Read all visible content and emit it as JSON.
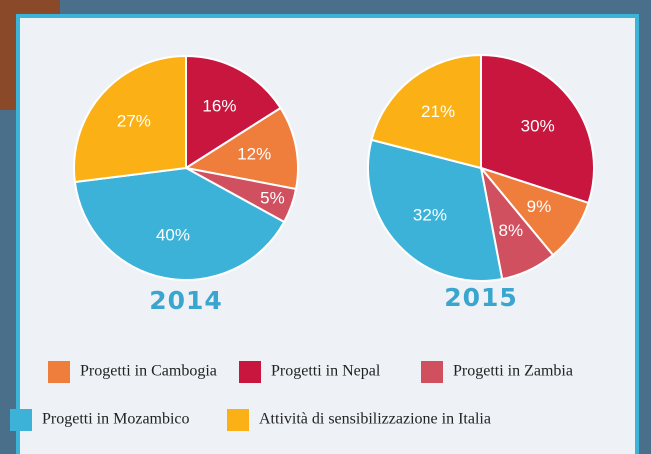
{
  "chart_data": [
    {
      "type": "pie",
      "title": "2014",
      "categories": [
        "Progetti in Nepal",
        "Progetti in Cambogia",
        "Progetti in Zambia",
        "Progetti in Mozambico",
        "Attività di sensibilizzazione in Italia"
      ],
      "values": [
        16,
        12,
        5,
        40,
        27
      ],
      "value_labels": [
        "16%",
        "12%",
        "5%",
        "40%",
        "27%"
      ],
      "colors": [
        "#c8163f",
        "#ef7d3c",
        "#d05060",
        "#3db2d8",
        "#fbb116"
      ]
    },
    {
      "type": "pie",
      "title": "2015",
      "categories": [
        "Progetti in Nepal",
        "Progetti in Cambogia",
        "Progetti in Zambia",
        "Progetti in Mozambico",
        "Attività di sensibilizzazione in Italia"
      ],
      "values": [
        30,
        9,
        8,
        32,
        21
      ],
      "value_labels": [
        "30%",
        "9%",
        "8%",
        "32%",
        "21%"
      ],
      "colors": [
        "#c8163f",
        "#ef7d3c",
        "#d05060",
        "#3db2d8",
        "#fbb116"
      ]
    }
  ]
}
